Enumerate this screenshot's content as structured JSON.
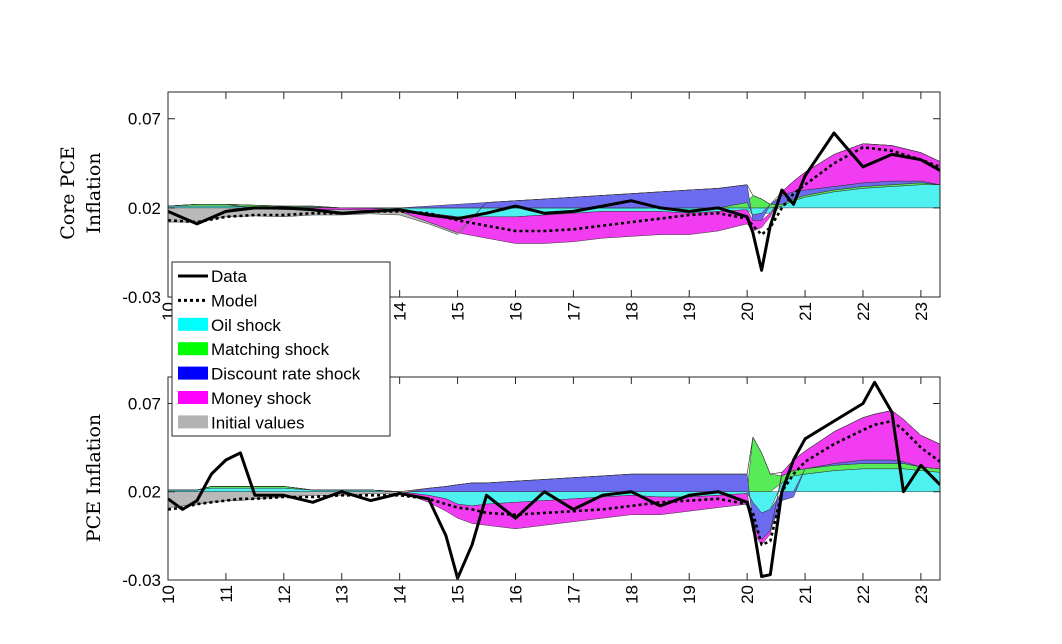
{
  "chart_data": [
    {
      "type": "area",
      "ylabel": [
        "Core PCE",
        "Inflation"
      ],
      "ylim": [
        -0.03,
        0.085
      ],
      "yticks": [
        -0.03,
        0.02,
        0.07
      ],
      "ytick_labels": [
        "-0.03",
        "0.02",
        "0.07"
      ],
      "xlim": [
        10,
        23.33
      ],
      "xticks": [
        10,
        11,
        12,
        13,
        14,
        15,
        16,
        17,
        18,
        19,
        20,
        21,
        22,
        23
      ],
      "xtick_labels": [
        "10",
        "11",
        "12",
        "13",
        "14",
        "15",
        "16",
        "17",
        "18",
        "19",
        "20",
        "21",
        "22",
        "23"
      ],
      "baseline": 0.02,
      "x": [
        10,
        10.5,
        11,
        11.5,
        12,
        12.5,
        13,
        13.5,
        14,
        14.5,
        15,
        15.5,
        16,
        16.5,
        17,
        17.5,
        18,
        18.5,
        19,
        19.5,
        20,
        20.1,
        20.25,
        20.4,
        20.6,
        20.8,
        21,
        21.5,
        22,
        22.5,
        23,
        23.33
      ],
      "series": [
        {
          "name": "Data",
          "style": "solid",
          "values": [
            0.018,
            0.011,
            0.018,
            0.02,
            0.02,
            0.019,
            0.017,
            0.018,
            0.019,
            0.016,
            0.014,
            0.017,
            0.021,
            0.017,
            0.018,
            0.021,
            0.024,
            0.02,
            0.018,
            0.02,
            0.015,
            0.006,
            -0.015,
            0.01,
            0.03,
            0.022,
            0.038,
            0.062,
            0.043,
            0.05,
            0.047,
            0.041
          ]
        },
        {
          "name": "Model",
          "style": "dotted",
          "values": [
            0.013,
            0.012,
            0.015,
            0.016,
            0.016,
            0.017,
            0.017,
            0.018,
            0.018,
            0.017,
            0.013,
            0.01,
            0.007,
            0.007,
            0.008,
            0.01,
            0.012,
            0.014,
            0.016,
            0.017,
            0.014,
            0.01,
            0.005,
            0.009,
            0.02,
            0.028,
            0.033,
            0.045,
            0.054,
            0.052,
            0.047,
            0.043
          ]
        }
      ],
      "contributions": [
        {
          "name": "Oil shock",
          "values": [
            0.001,
            0.001,
            0.001,
            0.0005,
            0.0005,
            0.0005,
            0,
            -0.0003,
            -0.001,
            -0.003,
            -0.005,
            -0.005,
            -0.005,
            -0.004,
            -0.003,
            -0.002,
            -0.002,
            -0.002,
            -0.003,
            -0.002,
            -0.001,
            -0.004,
            -0.003,
            -0.003,
            0.001,
            0.004,
            0.006,
            0.009,
            0.011,
            0.012,
            0.013,
            0.013
          ]
        },
        {
          "name": "Matching shock",
          "values": [
            0,
            0.001,
            0.001,
            0.001,
            0.0005,
            0.0005,
            0,
            0,
            0,
            0,
            0,
            0,
            0,
            0,
            0,
            0,
            0,
            0,
            0,
            0,
            0.003,
            0.007,
            0.005,
            0.002,
            0.001,
            0.001,
            0.001,
            0.001,
            0.001,
            0.001,
            0.001,
            0
          ]
        },
        {
          "name": "Discount rate shock",
          "values": [
            0,
            0,
            0,
            0,
            0,
            0,
            0,
            0,
            0,
            0.001,
            0.002,
            0.003,
            0.004,
            0.005,
            0.006,
            0.007,
            0.008,
            0.009,
            0.01,
            0.011,
            0.01,
            -0.003,
            -0.004,
            0,
            0.005,
            0.004,
            0.003,
            0.002,
            0.002,
            0.002,
            0.001,
            0
          ]
        },
        {
          "name": "Money shock",
          "values": [
            0,
            0,
            0,
            -0.0005,
            -0.001,
            -0.001,
            -0.001,
            -0.001,
            -0.001,
            -0.005,
            -0.009,
            -0.012,
            -0.015,
            -0.016,
            -0.016,
            -0.015,
            -0.014,
            -0.013,
            -0.012,
            -0.011,
            -0.008,
            -0.006,
            -0.004,
            -0.002,
            0.002,
            0.006,
            0.01,
            0.018,
            0.022,
            0.02,
            0.016,
            0.013
          ]
        },
        {
          "name": "Initial values",
          "values": [
            -0.008,
            -0.008,
            -0.005,
            -0.004,
            -0.004,
            -0.003,
            -0.003,
            -0.002,
            -0.002,
            -0.001,
            -0.001,
            0,
            0,
            0,
            0,
            0,
            0,
            0,
            0,
            0,
            0,
            0,
            0,
            0,
            0,
            0,
            0,
            0,
            0,
            0,
            0,
            0
          ]
        }
      ]
    },
    {
      "type": "area",
      "ylabel": [
        "PCE Inflation"
      ],
      "ylim": [
        -0.03,
        0.085
      ],
      "yticks": [
        -0.03,
        0.02,
        0.07
      ],
      "ytick_labels": [
        "-0.03",
        "0.02",
        "0.07"
      ],
      "xlim": [
        10,
        23.33
      ],
      "xticks": [
        10,
        11,
        12,
        13,
        14,
        15,
        16,
        17,
        18,
        19,
        20,
        21,
        22,
        23
      ],
      "xtick_labels": [
        "10",
        "11",
        "12",
        "13",
        "14",
        "15",
        "16",
        "17",
        "18",
        "19",
        "20",
        "21",
        "22",
        "23"
      ],
      "baseline": 0.02,
      "x": [
        10,
        10.25,
        10.5,
        10.75,
        11,
        11.25,
        11.5,
        12,
        12.5,
        13,
        13.5,
        14,
        14.5,
        14.8,
        15,
        15.25,
        15.5,
        16,
        16.5,
        17,
        17.5,
        18,
        18.5,
        19,
        19.5,
        20,
        20.1,
        20.25,
        20.4,
        20.6,
        20.8,
        21,
        21.5,
        22,
        22.2,
        22.5,
        22.7,
        23,
        23.33
      ],
      "series": [
        {
          "name": "Data",
          "style": "solid",
          "values": [
            0.016,
            0.01,
            0.015,
            0.03,
            0.038,
            0.042,
            0.018,
            0.018,
            0.014,
            0.02,
            0.015,
            0.019,
            0.016,
            -0.005,
            -0.029,
            -0.01,
            0.018,
            0.005,
            0.02,
            0.01,
            0.018,
            0.02,
            0.012,
            0.018,
            0.02,
            0.014,
            0.002,
            -0.028,
            -0.027,
            0.02,
            0.038,
            0.05,
            0.06,
            0.07,
            0.082,
            0.065,
            0.02,
            0.035,
            0.024
          ]
        },
        {
          "name": "Model",
          "style": "dotted",
          "values": [
            0.01,
            0.011,
            0.013,
            0.014,
            0.015,
            0.016,
            0.016,
            0.017,
            0.017,
            0.018,
            0.018,
            0.018,
            0.016,
            0.013,
            0.011,
            0.01,
            0.008,
            0.007,
            0.008,
            0.009,
            0.01,
            0.012,
            0.014,
            0.015,
            0.016,
            0.013,
            0.008,
            -0.01,
            -0.008,
            0.02,
            0.03,
            0.037,
            0.047,
            0.055,
            0.058,
            0.06,
            0.055,
            0.045,
            0.037
          ]
        }
      ],
      "contributions": [
        {
          "name": "Oil shock",
          "values": [
            0.001,
            0.001,
            0.001,
            0.002,
            0.002,
            0.002,
            0.002,
            0.002,
            0.001,
            0.001,
            0.001,
            0,
            -0.002,
            -0.004,
            -0.007,
            -0.008,
            -0.007,
            -0.006,
            -0.005,
            -0.004,
            -0.003,
            -0.002,
            -0.003,
            -0.003,
            -0.002,
            -0.001,
            -0.006,
            -0.012,
            -0.01,
            0.005,
            0.009,
            0.01,
            0.012,
            0.013,
            0.013,
            0.013,
            0.013,
            0.012,
            0.011
          ]
        },
        {
          "name": "Matching shock",
          "values": [
            0,
            0,
            0,
            0.001,
            0.001,
            0.001,
            0.001,
            0.001,
            0,
            0,
            0,
            0,
            0,
            0,
            0,
            0,
            0,
            0,
            0,
            0,
            0,
            0,
            0,
            0,
            0,
            0,
            0.031,
            0.022,
            0.01,
            0.004,
            0.003,
            0.003,
            0.003,
            0.003,
            0.003,
            0.003,
            0.003,
            0.002,
            0.002
          ]
        },
        {
          "name": "Discount rate shock",
          "values": [
            0,
            0,
            0,
            0,
            0,
            0,
            0,
            0,
            0,
            0,
            0,
            0,
            0.002,
            0.003,
            0.004,
            0.005,
            0.005,
            0.006,
            0.007,
            0.008,
            0.009,
            0.01,
            0.01,
            0.01,
            0.01,
            0.01,
            -0.012,
            -0.015,
            -0.012,
            -0.005,
            -0.003,
            0,
            0.001,
            0.002,
            0.002,
            0.002,
            0.001,
            0,
            0
          ]
        },
        {
          "name": "Money shock",
          "values": [
            0,
            0,
            0,
            0,
            0,
            0,
            0,
            0,
            0,
            0,
            0,
            0,
            -0.004,
            -0.007,
            -0.008,
            -0.01,
            -0.012,
            -0.015,
            -0.014,
            -0.013,
            -0.012,
            -0.011,
            -0.01,
            -0.008,
            -0.007,
            -0.006,
            -0.005,
            -0.003,
            -0.002,
            0.002,
            0.006,
            0.01,
            0.018,
            0.024,
            0.026,
            0.028,
            0.024,
            0.018,
            0.014
          ]
        },
        {
          "name": "Initial values",
          "values": [
            -0.009,
            -0.008,
            -0.007,
            -0.006,
            -0.005,
            -0.005,
            -0.004,
            -0.003,
            -0.002,
            -0.002,
            -0.001,
            -0.001,
            0,
            0,
            0,
            0,
            0,
            0,
            0,
            0,
            0,
            0,
            0,
            0,
            0,
            0,
            0,
            0,
            0,
            0,
            0,
            0,
            0,
            0,
            0,
            0,
            0,
            0,
            0
          ]
        }
      ]
    }
  ],
  "legend": {
    "items": [
      {
        "label": "Data",
        "kind": "solid",
        "color": "#000000"
      },
      {
        "label": "Model",
        "kind": "dotted",
        "color": "#000000"
      },
      {
        "label": "Oil shock",
        "kind": "patch",
        "color": "#00ffff"
      },
      {
        "label": "Matching shock",
        "kind": "patch",
        "color": "#00ff00"
      },
      {
        "label": "Discount rate shock",
        "kind": "patch",
        "color": "#0000ff"
      },
      {
        "label": "Money shock",
        "kind": "patch",
        "color": "#ff00ff"
      },
      {
        "label": "Initial values",
        "kind": "patch",
        "color": "#b3b3b3"
      }
    ]
  },
  "fill_colors": {
    "Oil shock": "#4ff0f0",
    "Matching shock": "#57eb57",
    "Discount rate shock": "#6b6bef",
    "Money shock": "#f23cf2",
    "Initial values": "#b9b9b9"
  }
}
